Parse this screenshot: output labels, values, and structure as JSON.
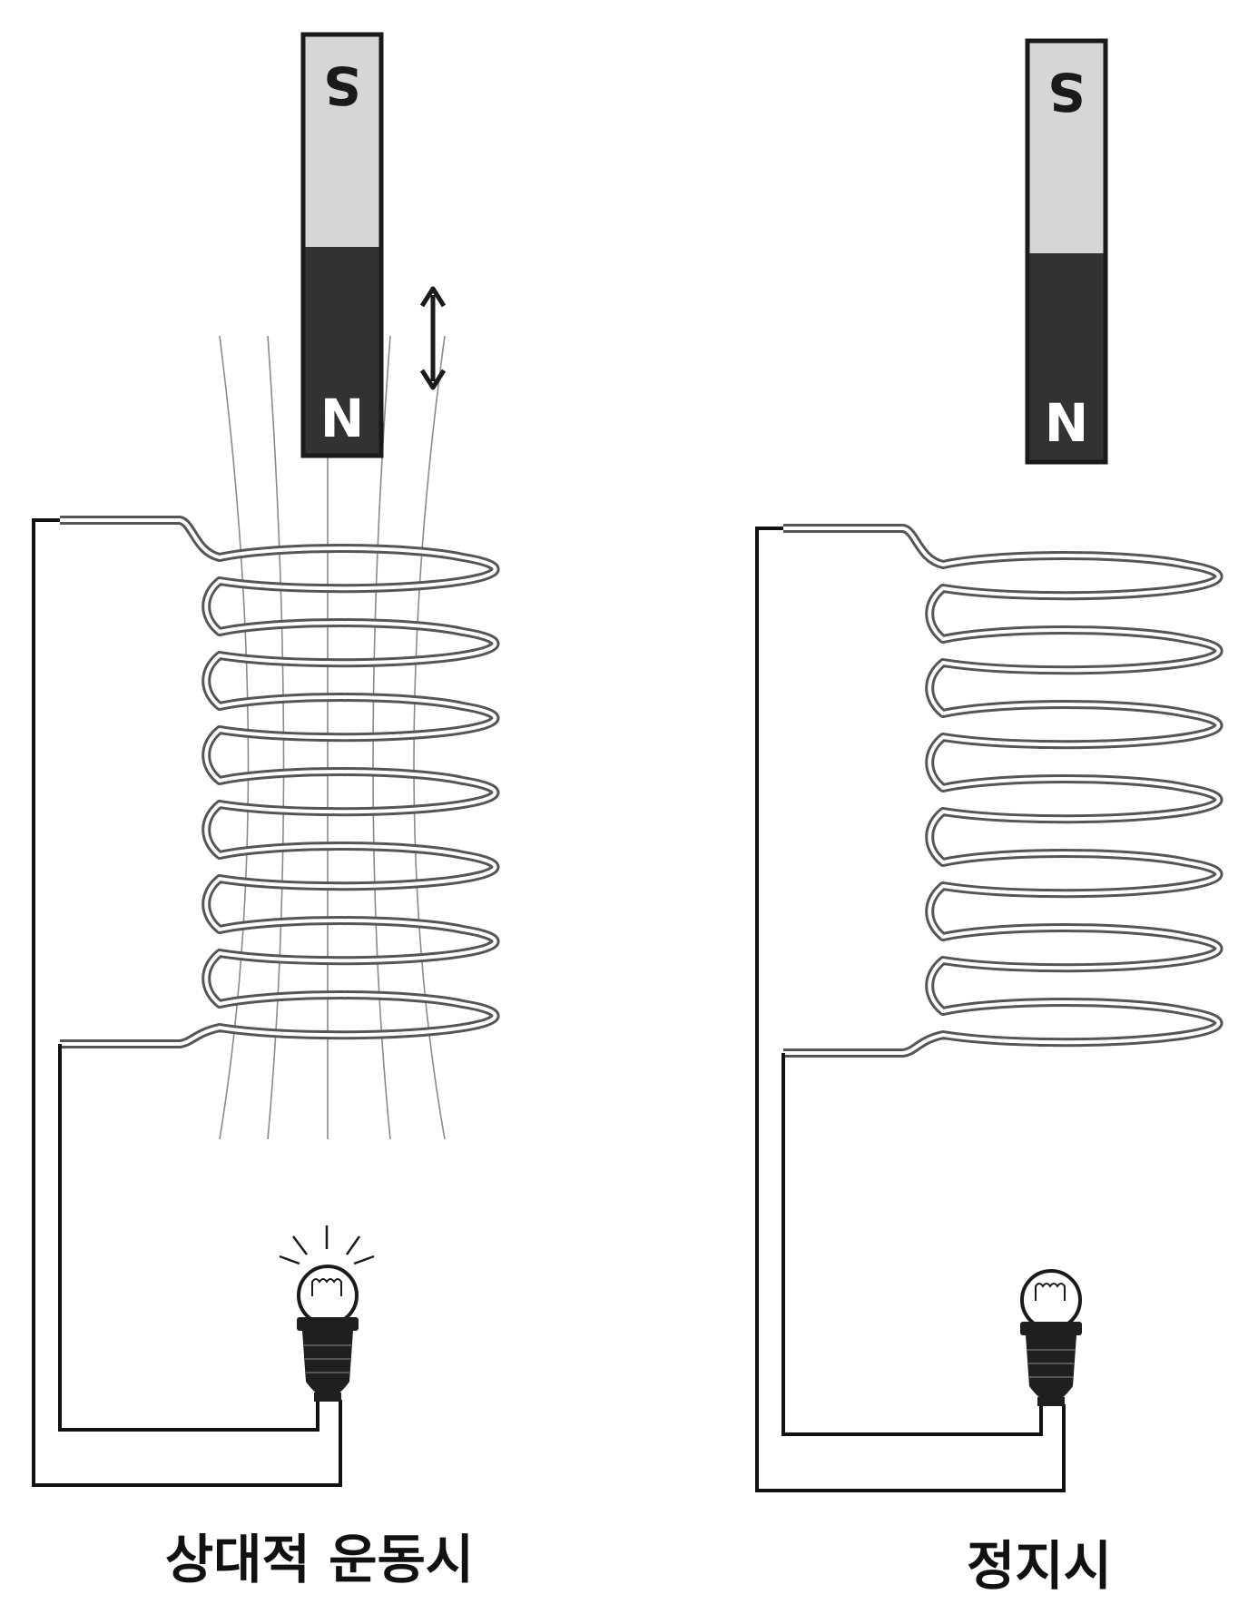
{
  "colors": {
    "magnet_s": "#d6d6d6",
    "magnet_n": "#333132",
    "outline": "#1a1a1a",
    "coil_stroke": "#555555",
    "wire": "#111111",
    "field_line": "#8a8a8a"
  },
  "panels": [
    {
      "id": "moving",
      "magnet": {
        "south_label": "S",
        "north_label": "N"
      },
      "caption": "상대적 운동시",
      "bulb_lit": true,
      "shows_motion": true,
      "shows_field_lines": true
    },
    {
      "id": "stationary",
      "magnet": {
        "south_label": "S",
        "north_label": "N"
      },
      "caption": "정지시",
      "bulb_lit": false,
      "shows_motion": false,
      "shows_field_lines": false
    }
  ]
}
